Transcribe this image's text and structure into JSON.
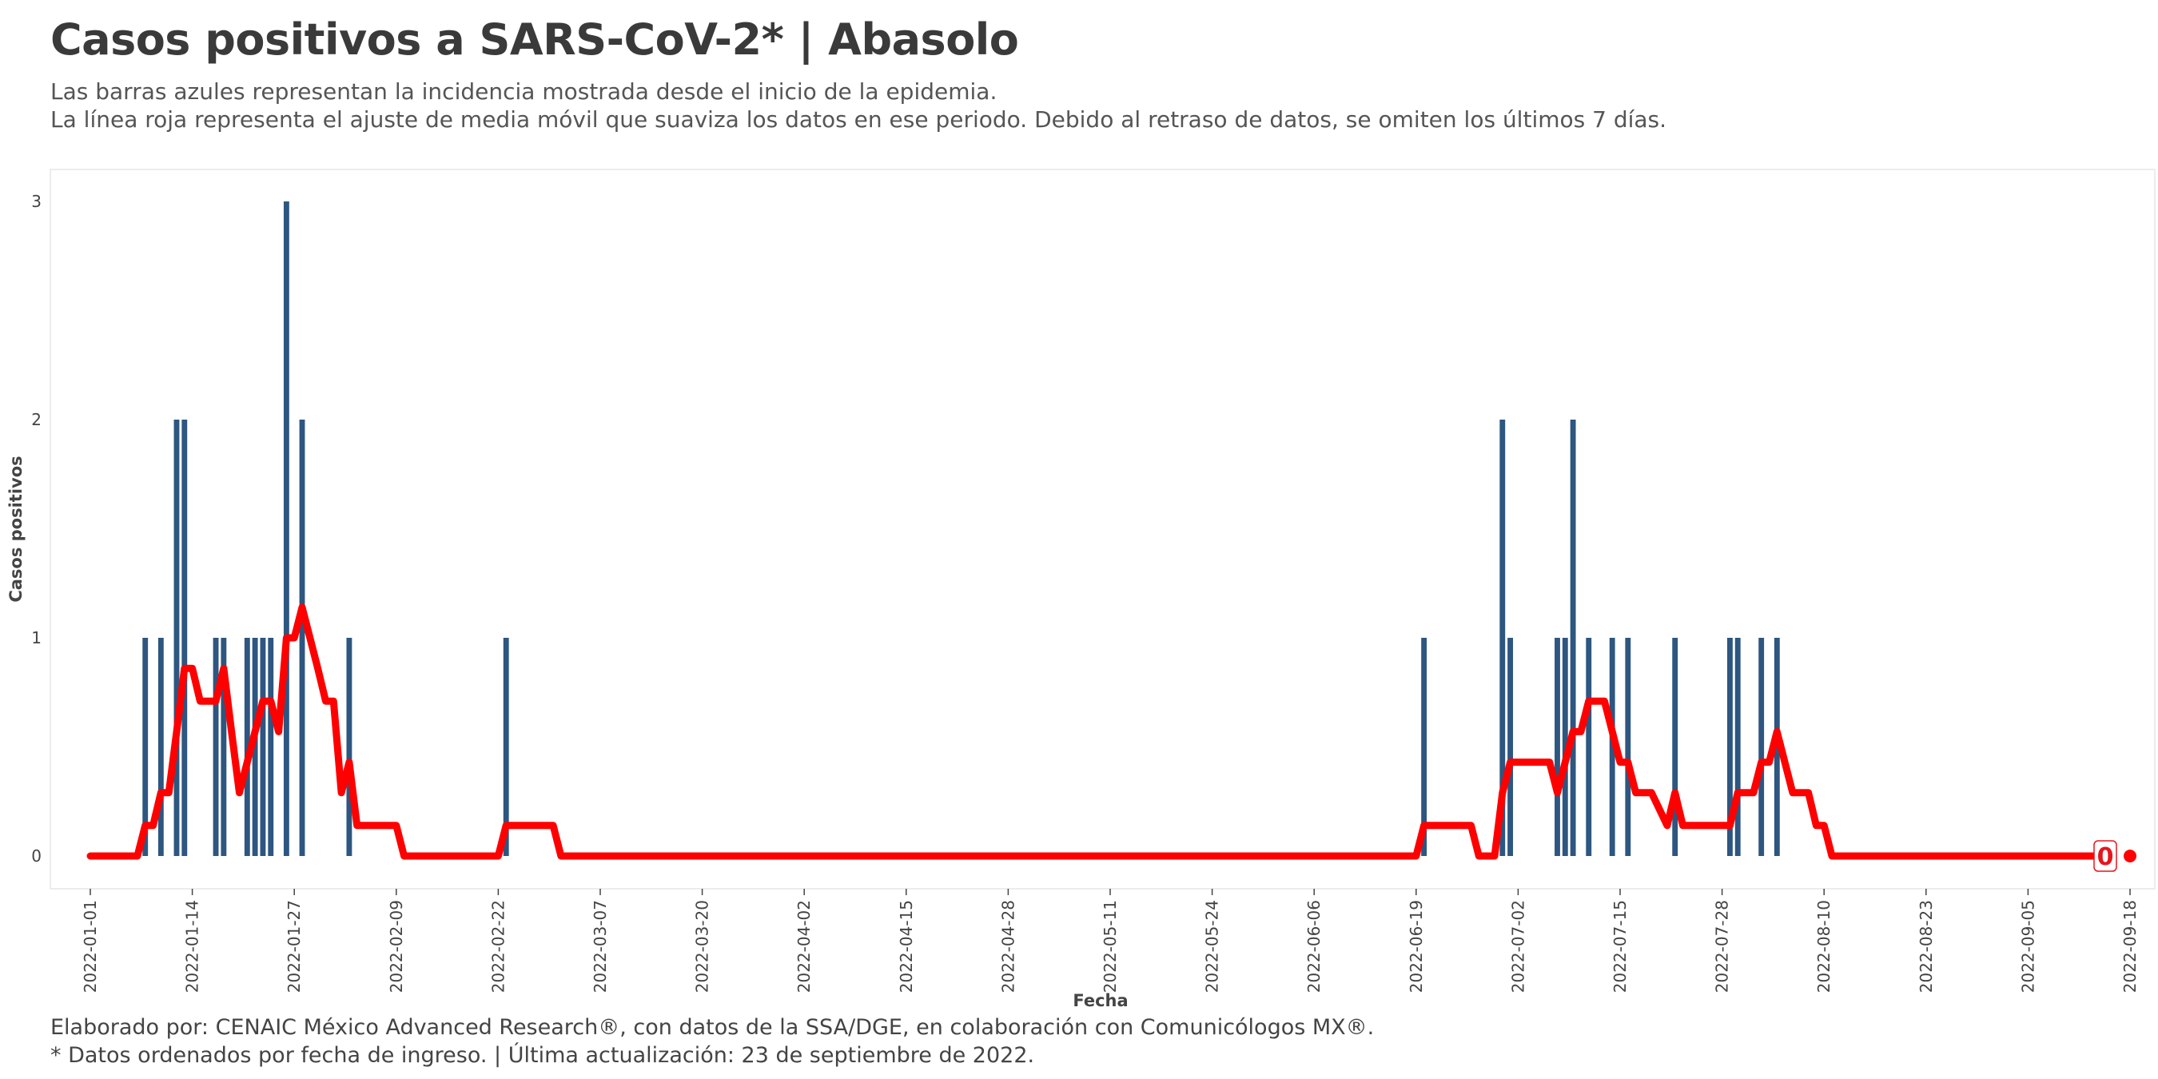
{
  "header": {
    "title": "Casos positivos a SARS-CoV-2* | Abasolo",
    "subtitle_line1": "Las barras azules representan la incidencia mostrada desde el inicio de la epidemia.",
    "subtitle_line2": "La línea roja representa el ajuste de media móvil que suaviza los datos en ese periodo. Debido al retraso de datos, se omiten los últimos 7 días."
  },
  "footer": {
    "caption_line1": "Elaborado por: CENAIC México Advanced Research®, con datos de la SSA/DGE, en colaboración con Comunicólogos MX®.",
    "caption_line2": "* Datos ordenados por fecha de ingreso. | Última actualización: 23 de septiembre de 2022."
  },
  "colors": {
    "bars": "#2d5680",
    "line": "#ff0000",
    "panel_border": "#e6e6e6"
  },
  "chart_data": {
    "type": "bar",
    "xlabel": "Fecha",
    "ylabel": "Casos positivos",
    "x_range": [
      "2022-01-01",
      "2022-09-18"
    ],
    "ylim": [
      0,
      3.15
    ],
    "y_ticks": [
      0,
      1,
      2,
      3
    ],
    "x_ticks": [
      "2022-01-01",
      "2022-01-14",
      "2022-01-27",
      "2022-02-09",
      "2022-02-22",
      "2022-03-07",
      "2022-03-20",
      "2022-04-02",
      "2022-04-15",
      "2022-04-28",
      "2022-05-11",
      "2022-05-24",
      "2022-06-06",
      "2022-06-19",
      "2022-07-02",
      "2022-07-15",
      "2022-07-28",
      "2022-08-10",
      "2022-08-23",
      "2022-09-05",
      "2022-09-18"
    ],
    "grid": false,
    "series": [
      {
        "type": "bar",
        "points": [
          {
            "x": "2022-01-08",
            "y": 1
          },
          {
            "x": "2022-01-10",
            "y": 1
          },
          {
            "x": "2022-01-12",
            "y": 2
          },
          {
            "x": "2022-01-13",
            "y": 2
          },
          {
            "x": "2022-01-17",
            "y": 1
          },
          {
            "x": "2022-01-18",
            "y": 1
          },
          {
            "x": "2022-01-21",
            "y": 1
          },
          {
            "x": "2022-01-22",
            "y": 1
          },
          {
            "x": "2022-01-23",
            "y": 1
          },
          {
            "x": "2022-01-24",
            "y": 1
          },
          {
            "x": "2022-01-26",
            "y": 3
          },
          {
            "x": "2022-01-28",
            "y": 2
          },
          {
            "x": "2022-02-03",
            "y": 1
          },
          {
            "x": "2022-02-23",
            "y": 1
          },
          {
            "x": "2022-06-20",
            "y": 1
          },
          {
            "x": "2022-06-30",
            "y": 2
          },
          {
            "x": "2022-07-01",
            "y": 1
          },
          {
            "x": "2022-07-07",
            "y": 1
          },
          {
            "x": "2022-07-08",
            "y": 1
          },
          {
            "x": "2022-07-09",
            "y": 2
          },
          {
            "x": "2022-07-11",
            "y": 1
          },
          {
            "x": "2022-07-14",
            "y": 1
          },
          {
            "x": "2022-07-16",
            "y": 1
          },
          {
            "x": "2022-07-22",
            "y": 1
          },
          {
            "x": "2022-07-29",
            "y": 1
          },
          {
            "x": "2022-07-30",
            "y": 1
          },
          {
            "x": "2022-08-02",
            "y": 1
          },
          {
            "x": "2022-08-04",
            "y": 1
          }
        ]
      },
      {
        "type": "line",
        "points": [
          {
            "x": "2022-01-01",
            "y": 0
          },
          {
            "x": "2022-01-07",
            "y": 0
          },
          {
            "x": "2022-01-08",
            "y": 0.14
          },
          {
            "x": "2022-01-09",
            "y": 0.14
          },
          {
            "x": "2022-01-10",
            "y": 0.29
          },
          {
            "x": "2022-01-11",
            "y": 0.29
          },
          {
            "x": "2022-01-12",
            "y": 0.57
          },
          {
            "x": "2022-01-13",
            "y": 0.86
          },
          {
            "x": "2022-01-14",
            "y": 0.86
          },
          {
            "x": "2022-01-15",
            "y": 0.71
          },
          {
            "x": "2022-01-17",
            "y": 0.71
          },
          {
            "x": "2022-01-18",
            "y": 0.86
          },
          {
            "x": "2022-01-19",
            "y": 0.57
          },
          {
            "x": "2022-01-20",
            "y": 0.29
          },
          {
            "x": "2022-01-21",
            "y": 0.43
          },
          {
            "x": "2022-01-22",
            "y": 0.57
          },
          {
            "x": "2022-01-23",
            "y": 0.71
          },
          {
            "x": "2022-01-24",
            "y": 0.71
          },
          {
            "x": "2022-01-25",
            "y": 0.57
          },
          {
            "x": "2022-01-26",
            "y": 1.0
          },
          {
            "x": "2022-01-27",
            "y": 1.0
          },
          {
            "x": "2022-01-28",
            "y": 1.14
          },
          {
            "x": "2022-01-29",
            "y": 1.0
          },
          {
            "x": "2022-01-30",
            "y": 0.86
          },
          {
            "x": "2022-01-31",
            "y": 0.71
          },
          {
            "x": "2022-02-01",
            "y": 0.71
          },
          {
            "x": "2022-02-02",
            "y": 0.29
          },
          {
            "x": "2022-02-03",
            "y": 0.43
          },
          {
            "x": "2022-02-04",
            "y": 0.14
          },
          {
            "x": "2022-02-09",
            "y": 0.14
          },
          {
            "x": "2022-02-10",
            "y": 0
          },
          {
            "x": "2022-02-22",
            "y": 0
          },
          {
            "x": "2022-02-23",
            "y": 0.14
          },
          {
            "x": "2022-03-01",
            "y": 0.14
          },
          {
            "x": "2022-03-02",
            "y": 0
          },
          {
            "x": "2022-06-19",
            "y": 0
          },
          {
            "x": "2022-06-20",
            "y": 0.14
          },
          {
            "x": "2022-06-26",
            "y": 0.14
          },
          {
            "x": "2022-06-27",
            "y": 0
          },
          {
            "x": "2022-06-29",
            "y": 0
          },
          {
            "x": "2022-06-30",
            "y": 0.29
          },
          {
            "x": "2022-07-01",
            "y": 0.43
          },
          {
            "x": "2022-07-06",
            "y": 0.43
          },
          {
            "x": "2022-07-07",
            "y": 0.29
          },
          {
            "x": "2022-07-08",
            "y": 0.43
          },
          {
            "x": "2022-07-09",
            "y": 0.57
          },
          {
            "x": "2022-07-10",
            "y": 0.57
          },
          {
            "x": "2022-07-11",
            "y": 0.71
          },
          {
            "x": "2022-07-13",
            "y": 0.71
          },
          {
            "x": "2022-07-14",
            "y": 0.57
          },
          {
            "x": "2022-07-15",
            "y": 0.43
          },
          {
            "x": "2022-07-16",
            "y": 0.43
          },
          {
            "x": "2022-07-17",
            "y": 0.29
          },
          {
            "x": "2022-07-19",
            "y": 0.29
          },
          {
            "x": "2022-07-21",
            "y": 0.14
          },
          {
            "x": "2022-07-22",
            "y": 0.29
          },
          {
            "x": "2022-07-23",
            "y": 0.14
          },
          {
            "x": "2022-07-29",
            "y": 0.14
          },
          {
            "x": "2022-07-30",
            "y": 0.29
          },
          {
            "x": "2022-08-01",
            "y": 0.29
          },
          {
            "x": "2022-08-02",
            "y": 0.43
          },
          {
            "x": "2022-08-03",
            "y": 0.43
          },
          {
            "x": "2022-08-04",
            "y": 0.57
          },
          {
            "x": "2022-08-05",
            "y": 0.43
          },
          {
            "x": "2022-08-06",
            "y": 0.29
          },
          {
            "x": "2022-08-08",
            "y": 0.29
          },
          {
            "x": "2022-08-09",
            "y": 0.14
          },
          {
            "x": "2022-08-10",
            "y": 0.14
          },
          {
            "x": "2022-08-11",
            "y": 0
          },
          {
            "x": "2022-09-15",
            "y": 0
          }
        ]
      }
    ],
    "end_point": {
      "x": "2022-09-18",
      "y": 0
    },
    "end_label": "0"
  }
}
